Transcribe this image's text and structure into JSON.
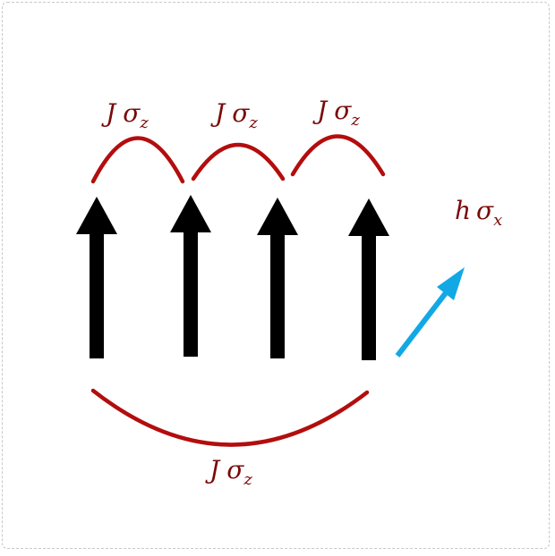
{
  "colors": {
    "bond": "#b30d0d",
    "label": "#7a0a0a",
    "spin": "#000000",
    "field": "#12a8e6",
    "frame": "#c8c8c8"
  },
  "bonds": {
    "top_labels": [
      {
        "coupling": "J",
        "operator": "σ",
        "index": "z"
      },
      {
        "coupling": "J",
        "operator": "σ",
        "index": "z"
      },
      {
        "coupling": "J",
        "operator": "σ",
        "index": "z"
      }
    ],
    "bottom_label": {
      "coupling": "J",
      "operator": "σ",
      "index": "z"
    }
  },
  "field_label": {
    "coupling": "h",
    "operator": "σ",
    "index": "x"
  },
  "spins": [
    {
      "direction": "up"
    },
    {
      "direction": "up"
    },
    {
      "direction": "up"
    },
    {
      "direction": "up"
    }
  ],
  "icons": {
    "spin": "up-arrow",
    "field": "diagonal-arrow"
  }
}
